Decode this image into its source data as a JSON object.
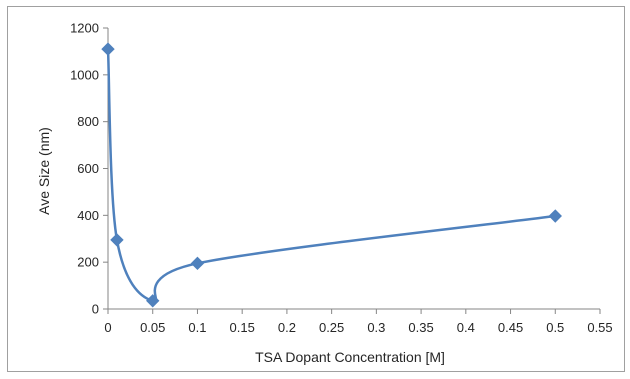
{
  "chart_data": {
    "type": "scatter",
    "xlabel": "TSA Dopant Concentration [M]",
    "ylabel": "Ave Size (nm)",
    "xlim": [
      0,
      0.55
    ],
    "ylim": [
      0,
      1200
    ],
    "x_ticks": [
      0,
      0.05,
      0.1,
      0.15,
      0.2,
      0.25,
      0.3,
      0.35,
      0.4,
      0.45,
      0.5,
      0.55
    ],
    "x_tick_labels": [
      "0",
      "0.05",
      "0.1",
      "0.15",
      "0.2",
      "0.25",
      "0.3",
      "0.35",
      "0.4",
      "0.45",
      "0.5",
      "0.55"
    ],
    "y_ticks": [
      0,
      200,
      400,
      600,
      800,
      1000,
      1200
    ],
    "y_tick_labels": [
      "0",
      "200",
      "400",
      "600",
      "800",
      "1000",
      "1200"
    ],
    "grid": false,
    "legend": "none",
    "line": "smooth",
    "marker": "diamond",
    "color": "#4f81bd",
    "series": [
      {
        "x": [
          0,
          0.01,
          0.05,
          0.1,
          0.5
        ],
        "y": [
          1110,
          295,
          35,
          195,
          397
        ]
      }
    ]
  }
}
